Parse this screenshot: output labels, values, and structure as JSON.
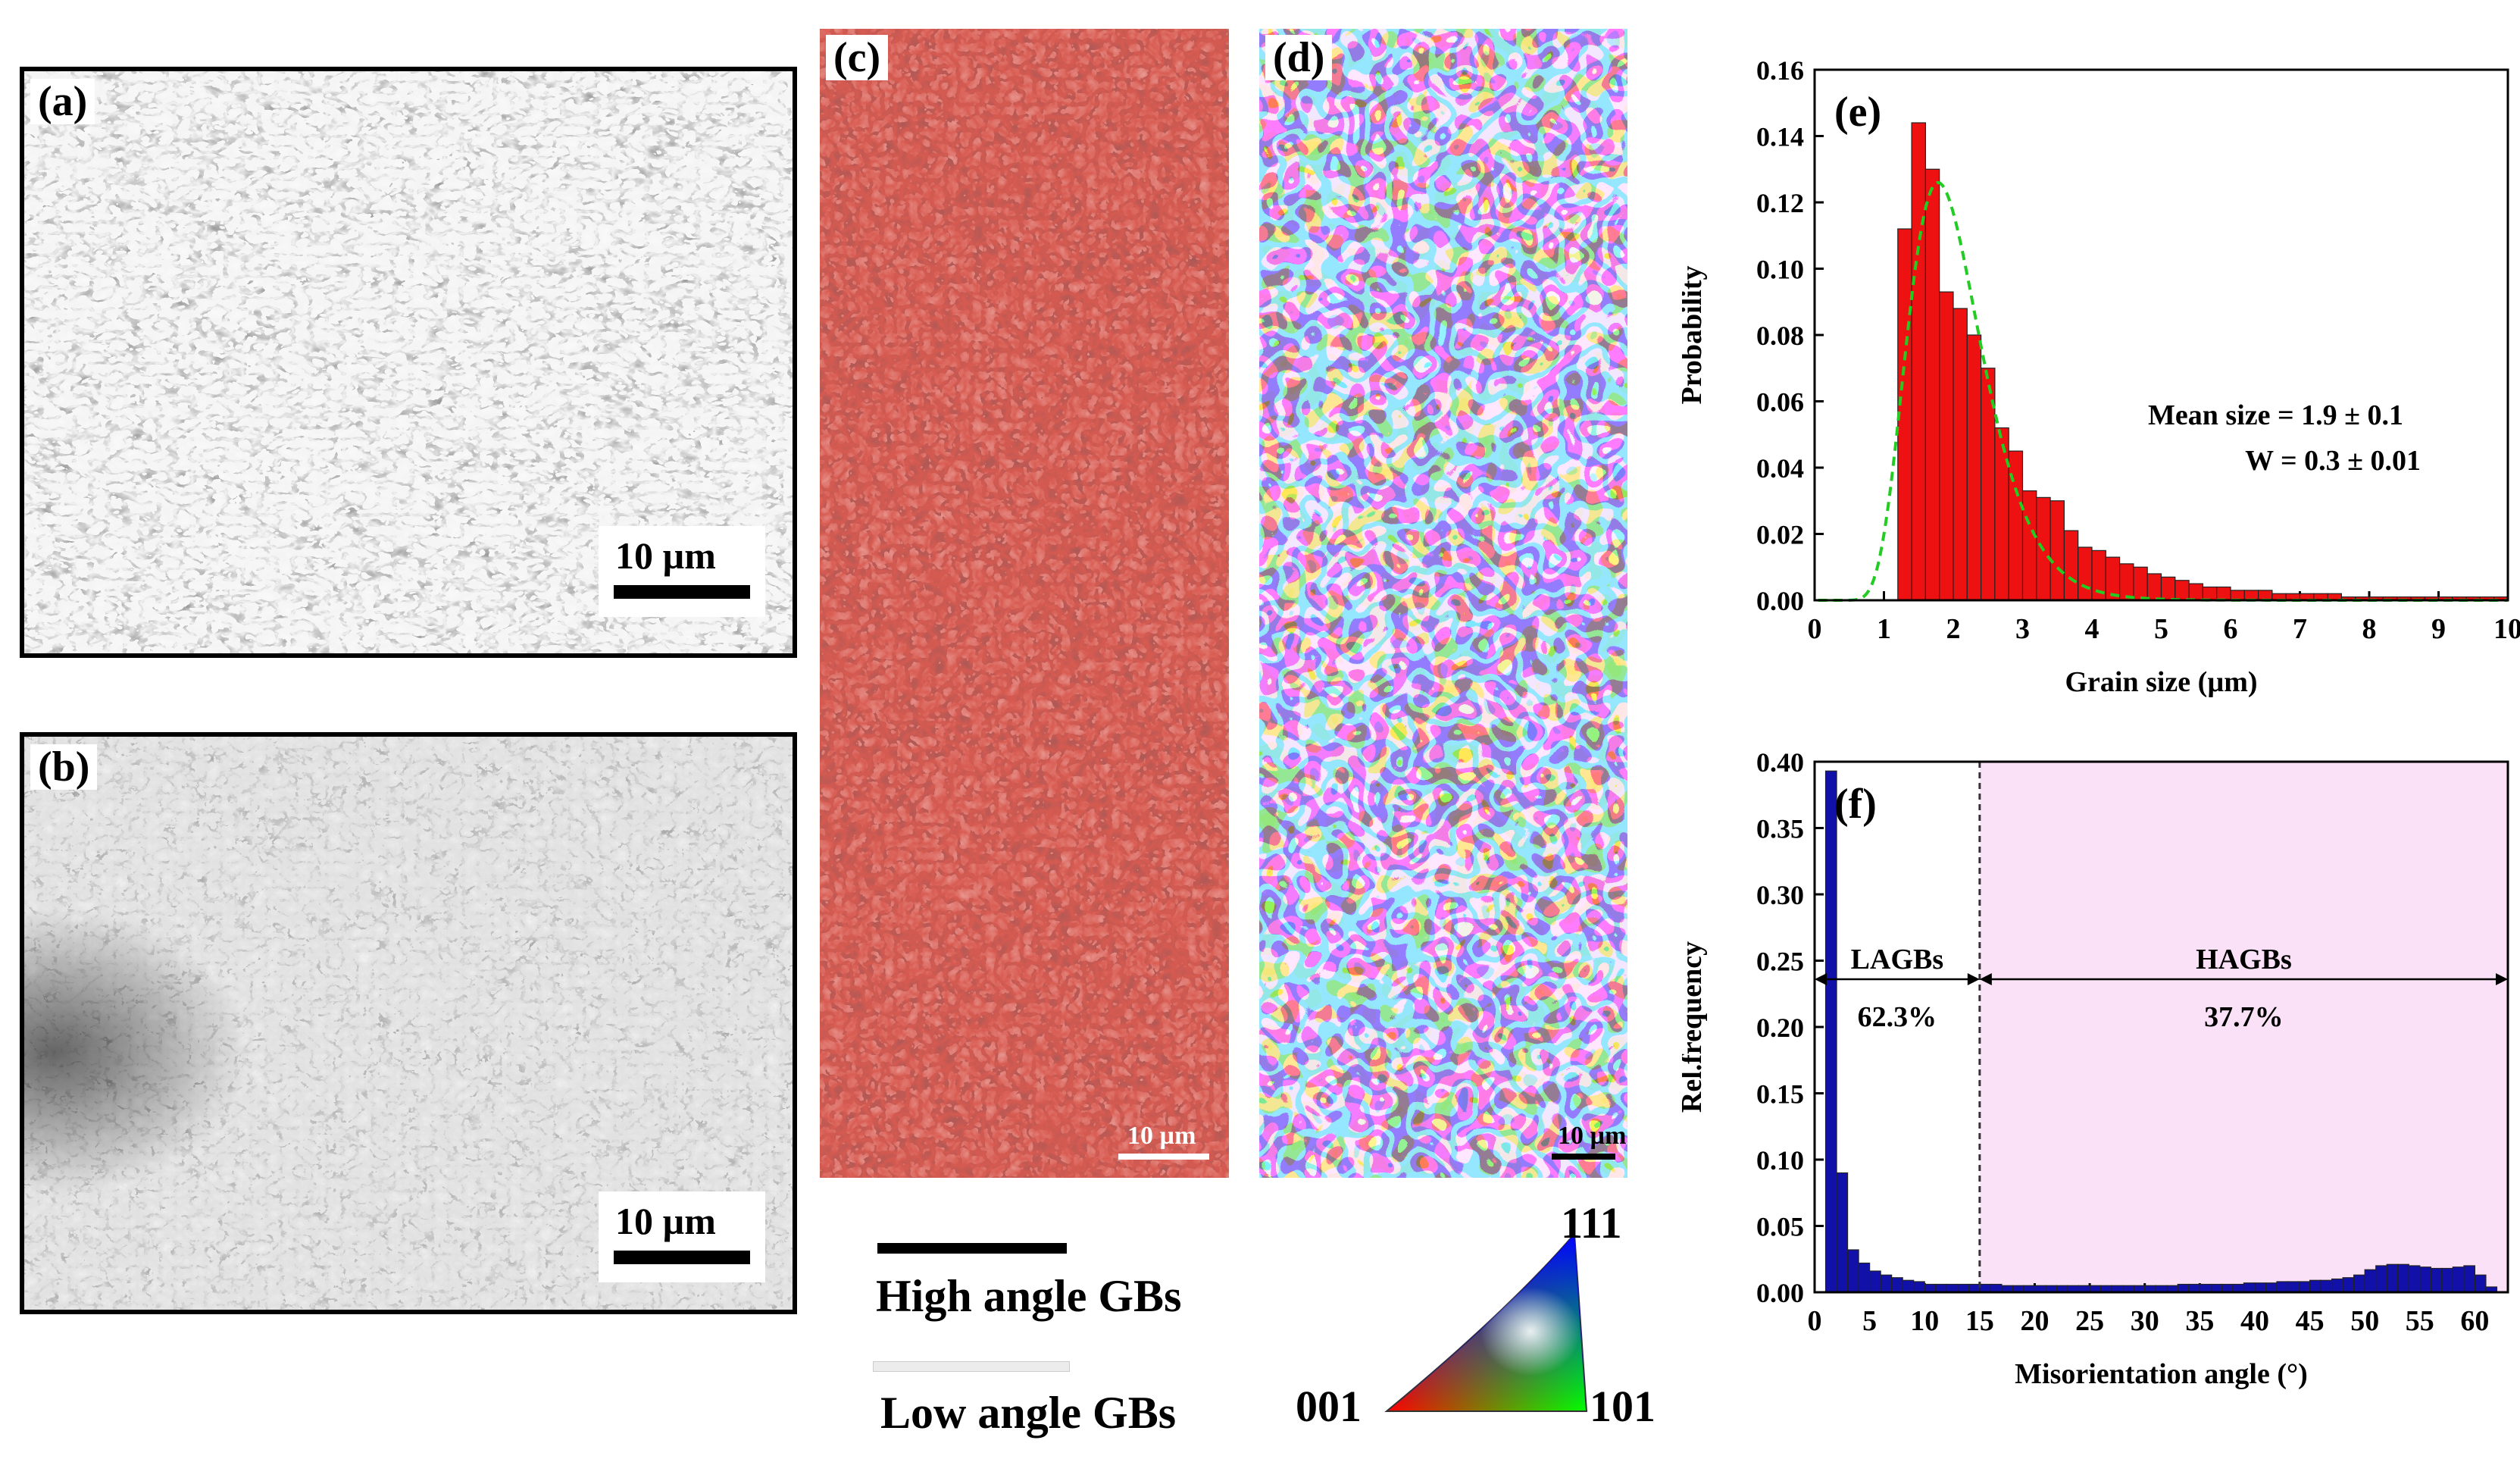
{
  "panels": {
    "a": {
      "label": "(a)",
      "scalebar": "10 µm"
    },
    "b": {
      "label": "(b)",
      "scalebar": "10 µm"
    },
    "c": {
      "label": "(c)",
      "scalebar": "10 µm"
    },
    "d": {
      "label": "(d)",
      "scalebar": "10 µm"
    }
  },
  "gb_legend": {
    "high": "High angle GBs",
    "low": "Low angle GBs",
    "high_color": "#000000",
    "low_color": "#ececec"
  },
  "ipf": {
    "corner_001": "001",
    "corner_101": "101",
    "corner_111": "111"
  },
  "chart_data": [
    {
      "type": "bar",
      "panel": "(e)",
      "xlabel": "Grain size (µm)",
      "ylabel": "Probability",
      "xlim": [
        0,
        10
      ],
      "ylim": [
        0,
        0.16
      ],
      "xticks": [
        "0",
        "1",
        "2",
        "3",
        "4",
        "5",
        "6",
        "7",
        "8",
        "9",
        "10"
      ],
      "yticks": [
        "0.00",
        "0.02",
        "0.04",
        "0.06",
        "0.08",
        "0.10",
        "0.12",
        "0.14",
        "0.16"
      ],
      "bin_width": 0.2,
      "bin_starts": [
        1.2,
        1.4,
        1.6,
        1.8,
        2.0,
        2.2,
        2.4,
        2.6,
        2.8,
        3.0,
        3.2,
        3.4,
        3.6,
        3.8,
        4.0,
        4.2,
        4.4,
        4.6,
        4.8,
        5.0,
        5.2,
        5.4,
        5.6,
        5.8,
        6.0,
        6.2,
        6.4,
        6.6,
        6.8,
        7.0,
        7.2,
        7.4,
        7.6,
        7.8,
        8.0,
        8.2,
        8.4,
        8.6,
        8.8,
        9.0,
        9.2,
        9.4,
        9.6,
        9.8
      ],
      "values": [
        0.112,
        0.144,
        0.13,
        0.093,
        0.088,
        0.08,
        0.07,
        0.052,
        0.045,
        0.033,
        0.031,
        0.03,
        0.021,
        0.016,
        0.015,
        0.013,
        0.011,
        0.01,
        0.008,
        0.007,
        0.006,
        0.005,
        0.004,
        0.004,
        0.003,
        0.003,
        0.003,
        0.002,
        0.002,
        0.002,
        0.002,
        0.002,
        0.001,
        0.001,
        0.001,
        0.001,
        0.001,
        0.001,
        0.001,
        0.001,
        0.001,
        0.001,
        0.001,
        0.001
      ],
      "bar_color": "#ee1111",
      "fit": {
        "mode": 1.78,
        "peak": 0.126,
        "shape": 0.3,
        "color": "#22cc22",
        "style": "dashed"
      },
      "annotations": [
        "Mean size = 1.9 ± 0.1",
        "W = 0.3 ± 0.01"
      ]
    },
    {
      "type": "bar",
      "panel": "(f)",
      "xlabel": "Misorientation angle (°)",
      "ylabel": "Rel.frequency",
      "xlim": [
        0,
        63
      ],
      "ylim": [
        0,
        0.4
      ],
      "xticks": [
        "0",
        "5",
        "10",
        "15",
        "20",
        "25",
        "30",
        "35",
        "40",
        "45",
        "50",
        "55",
        "60"
      ],
      "yticks": [
        "0.00",
        "0.05",
        "0.10",
        "0.15",
        "0.20",
        "0.25",
        "0.30",
        "0.35",
        "0.40"
      ],
      "bin_width": 1,
      "bin_starts": [
        0,
        1,
        2,
        3,
        4,
        5,
        6,
        7,
        8,
        9,
        10,
        11,
        12,
        13,
        14,
        15,
        16,
        17,
        18,
        19,
        20,
        21,
        22,
        23,
        24,
        25,
        26,
        27,
        28,
        29,
        30,
        31,
        32,
        33,
        34,
        35,
        36,
        37,
        38,
        39,
        40,
        41,
        42,
        43,
        44,
        45,
        46,
        47,
        48,
        49,
        50,
        51,
        52,
        53,
        54,
        55,
        56,
        57,
        58,
        59,
        60,
        61
      ],
      "values": [
        0.0,
        0.393,
        0.09,
        0.032,
        0.022,
        0.016,
        0.013,
        0.011,
        0.009,
        0.008,
        0.006,
        0.006,
        0.006,
        0.006,
        0.006,
        0.006,
        0.006,
        0.005,
        0.005,
        0.005,
        0.005,
        0.005,
        0.005,
        0.005,
        0.005,
        0.005,
        0.005,
        0.005,
        0.005,
        0.005,
        0.005,
        0.005,
        0.005,
        0.006,
        0.006,
        0.006,
        0.006,
        0.006,
        0.006,
        0.007,
        0.007,
        0.007,
        0.008,
        0.008,
        0.008,
        0.009,
        0.009,
        0.01,
        0.011,
        0.013,
        0.017,
        0.02,
        0.021,
        0.021,
        0.02,
        0.019,
        0.018,
        0.018,
        0.019,
        0.02,
        0.013,
        0.004
      ],
      "bar_color": "#1111aa",
      "divider_at": 15,
      "regions": [
        {
          "name": "LAGBs",
          "percent": "62.3%",
          "from": 0,
          "to": 15
        },
        {
          "name": "HAGBs",
          "percent": "37.7%",
          "from": 15,
          "to": 63
        }
      ],
      "region_arrow_y": 0.236,
      "shade_color": "#f7c8f0"
    }
  ]
}
